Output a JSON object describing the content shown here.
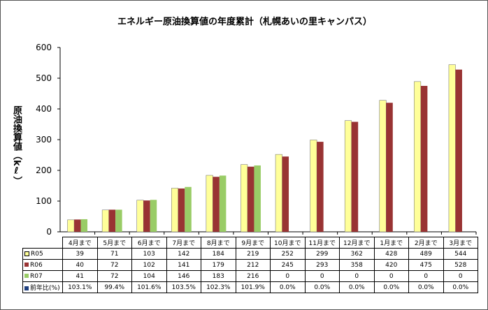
{
  "chart_data": {
    "type": "bar",
    "title": "エネルギー原油換算値の年度累計（札幌あいの里キャンパス）",
    "ylabel": "原油換算値（kℓ）",
    "ylim": [
      0,
      600
    ],
    "yticks": [
      0,
      100,
      200,
      300,
      400,
      500,
      600
    ],
    "grid": false,
    "categories": [
      "4月まで",
      "5月まで",
      "6月まで",
      "7月まで",
      "8月まで",
      "9月まで",
      "10月まで",
      "11月まで",
      "12月まで",
      "1月まで",
      "2月まで",
      "3月まで"
    ],
    "series": [
      {
        "name": "R05",
        "color": "#FFFF99",
        "values": [
          39,
          71,
          103,
          142,
          184,
          219,
          252,
          299,
          362,
          428,
          489,
          544
        ]
      },
      {
        "name": "R06",
        "color": "#993333",
        "values": [
          40,
          72,
          102,
          141,
          179,
          212,
          245,
          293,
          358,
          420,
          475,
          528
        ]
      },
      {
        "name": "R07",
        "color": "#99CC66",
        "values": [
          41,
          72,
          104,
          146,
          183,
          216,
          0,
          0,
          0,
          0,
          0,
          0
        ]
      }
    ],
    "ratio": {
      "name": "前年比(%)",
      "color": "#1F3F7F",
      "values": [
        "103.1%",
        "99.4%",
        "101.6%",
        "103.5%",
        "102.3%",
        "101.9%",
        "0.0%",
        "0.0%",
        "0.0%",
        "0.0%",
        "0.0%",
        "0.0%"
      ]
    }
  }
}
